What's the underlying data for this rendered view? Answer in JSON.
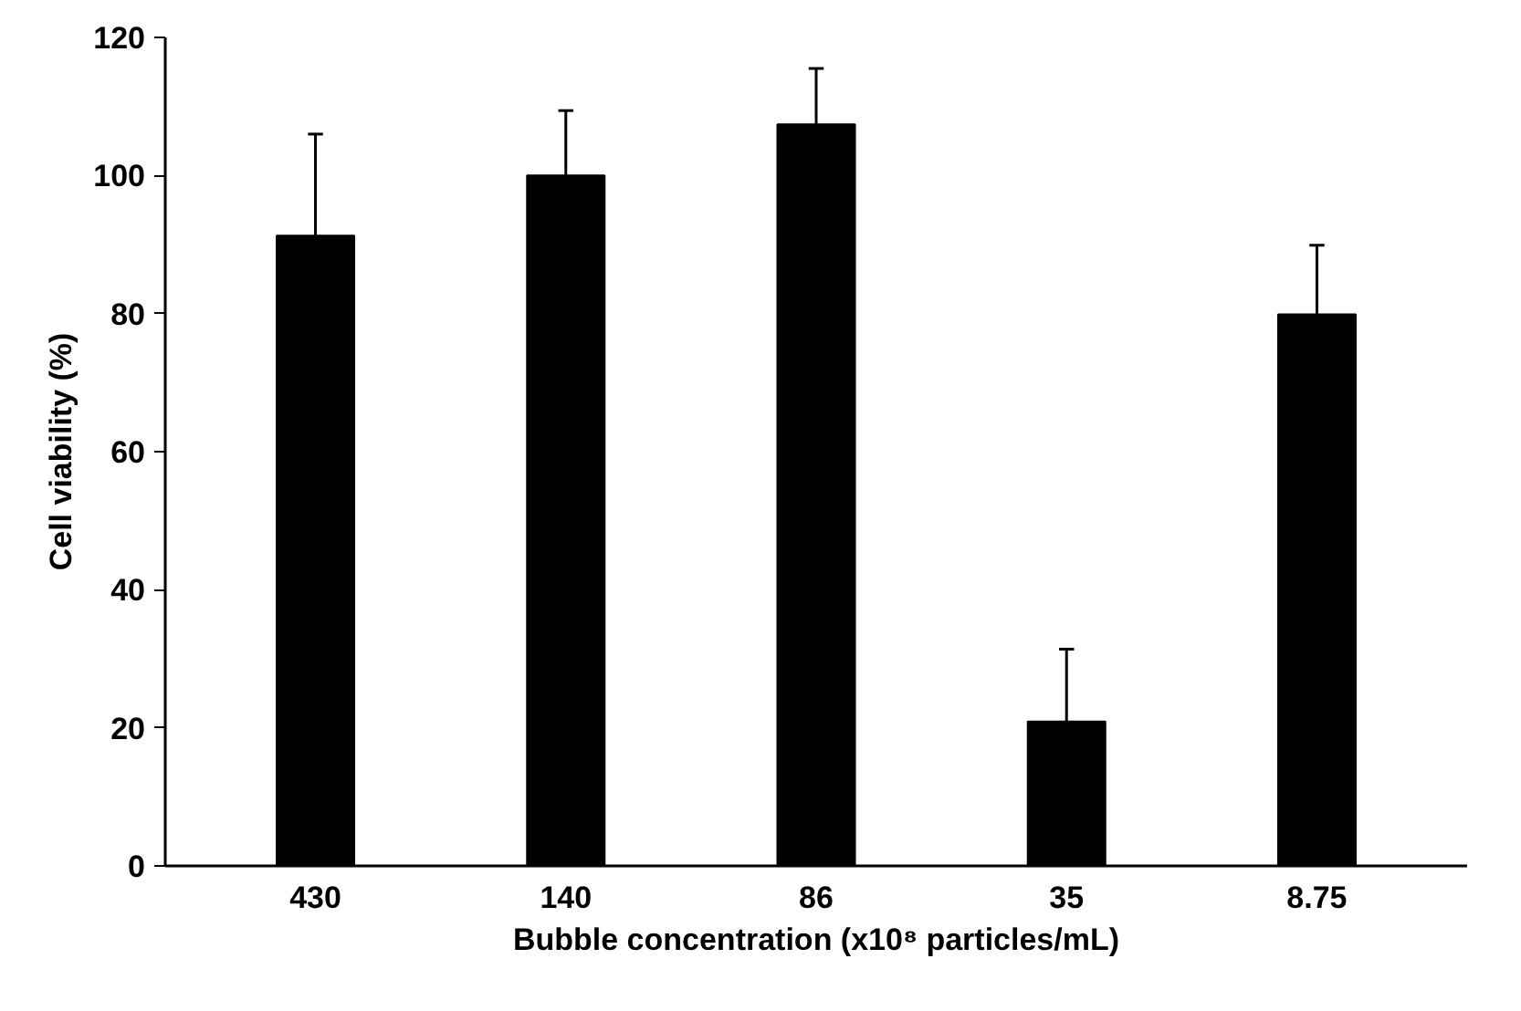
{
  "chart_data": {
    "type": "bar",
    "xlabel": "Bubble concentration (x10⁸ particles/mL)",
    "ylabel": "Cell viability (%)",
    "categories": [
      "430",
      "140",
      "86",
      "35",
      "8.75"
    ],
    "values": [
      91.3,
      100,
      107.4,
      20.9,
      79.9
    ],
    "errors": [
      [
        91.3,
        106.0
      ],
      [
        100,
        109.4
      ],
      [
        107.4,
        115.5
      ],
      [
        20.9,
        31.4
      ],
      [
        79.9,
        89.9
      ]
    ],
    "color": "#000000",
    "ylim": [
      0,
      120
    ],
    "yticks": [
      0,
      20,
      40,
      60,
      80,
      100,
      120
    ],
    "grid": false
  }
}
